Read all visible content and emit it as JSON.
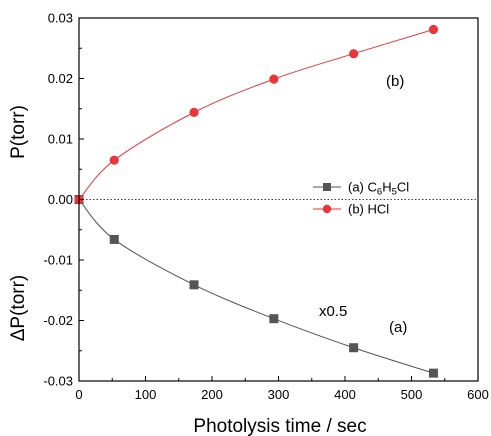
{
  "chart_data": {
    "type": "line",
    "xlabel": "Photolysis time / sec",
    "ylabel_upper": "P(torr)",
    "ylabel_lower": "ΔP(torr)",
    "xlim": [
      0,
      600
    ],
    "ylim": [
      -0.03,
      0.03
    ],
    "xticks": [
      {
        "value": 0,
        "label": "0"
      },
      {
        "value": 100,
        "label": "100"
      },
      {
        "value": 200,
        "label": "200"
      },
      {
        "value": 300,
        "label": "300"
      },
      {
        "value": 400,
        "label": "400"
      },
      {
        "value": 500,
        "label": "500"
      },
      {
        "value": 600,
        "label": "600"
      }
    ],
    "yticks": [
      {
        "value": 0.03,
        "label": "0.03"
      },
      {
        "value": 0.02,
        "label": "0.02"
      },
      {
        "value": 0.01,
        "label": "0.01"
      },
      {
        "value": 0.0,
        "label": "0.00"
      },
      {
        "value": -0.01,
        "label": "-0.01"
      },
      {
        "value": -0.02,
        "label": "-0.02"
      },
      {
        "value": -0.03,
        "label": "-0.03"
      }
    ],
    "zero_line": true,
    "grid": false,
    "series": [
      {
        "name": "(a) C6H5Cl",
        "name_parts": [
          {
            "t": "(a) C",
            "sub": false
          },
          {
            "t": "6",
            "sub": true
          },
          {
            "t": "H",
            "sub": false
          },
          {
            "t": "5",
            "sub": true
          },
          {
            "t": "Cl",
            "sub": false
          }
        ],
        "marker": "square",
        "color": "#555555",
        "line_color": "#555555",
        "x": [
          0,
          53,
          173,
          293,
          413,
          533
        ],
        "y": [
          0.0,
          -0.0066,
          -0.0141,
          -0.0197,
          -0.0245,
          -0.0287
        ]
      },
      {
        "name": "(b) HCl",
        "name_parts": [
          {
            "t": "(b) HCl",
            "sub": false
          }
        ],
        "marker": "circle",
        "color": "#e8363a",
        "line_color": "#e8363a",
        "x": [
          0,
          53,
          173,
          293,
          413,
          533
        ],
        "y": [
          0.0,
          0.0065,
          0.0144,
          0.0199,
          0.0241,
          0.0281
        ]
      }
    ],
    "annotations": {
      "b": "(b)",
      "scale": "x0.5",
      "a": "(a)"
    },
    "legend_position": "center-right"
  }
}
